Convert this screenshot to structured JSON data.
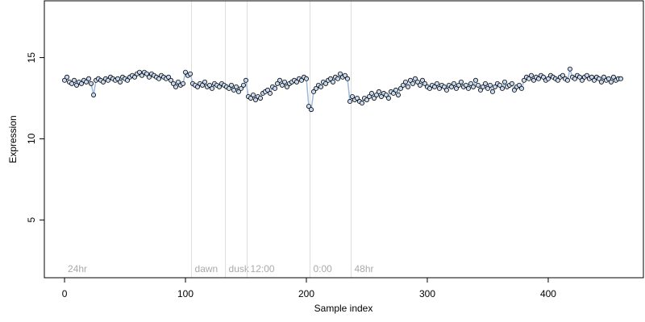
{
  "chart_data": {
    "type": "scatter",
    "xlabel": "Sample index",
    "ylabel": "Expression",
    "xlim": [
      -16.7,
      478.7
    ],
    "xticks": [
      0,
      100,
      200,
      300,
      400
    ],
    "ylim": [
      1.44,
      18.5
    ],
    "yticks": [
      5,
      10,
      15
    ],
    "color": "#c6d9f0",
    "line_color": "#9ab8e0",
    "annotations": [
      {
        "x": 0,
        "label": "24hr"
      },
      {
        "x": 105,
        "label": "dawn"
      },
      {
        "x": 133,
        "label": "dusk"
      },
      {
        "x": 151,
        "label": "12:00"
      },
      {
        "x": 203,
        "label": "0:00"
      },
      {
        "x": 237,
        "label": "48hr"
      }
    ],
    "x": [
      0,
      2,
      4,
      6,
      8,
      10,
      12,
      14,
      16,
      18,
      20,
      22,
      24,
      26,
      28,
      30,
      32,
      34,
      36,
      38,
      40,
      42,
      44,
      46,
      48,
      50,
      52,
      54,
      56,
      58,
      60,
      62,
      64,
      66,
      68,
      70,
      72,
      74,
      76,
      78,
      80,
      82,
      84,
      86,
      88,
      90,
      92,
      94,
      96,
      98,
      100,
      102,
      104,
      106,
      108,
      110,
      112,
      114,
      116,
      118,
      120,
      122,
      124,
      126,
      128,
      130,
      132,
      134,
      136,
      138,
      140,
      142,
      144,
      146,
      148,
      150,
      152,
      154,
      156,
      158,
      160,
      162,
      164,
      166,
      168,
      170,
      172,
      174,
      176,
      178,
      180,
      182,
      184,
      186,
      188,
      190,
      192,
      194,
      196,
      198,
      200,
      202,
      204,
      206,
      208,
      210,
      212,
      214,
      216,
      218,
      220,
      222,
      224,
      226,
      228,
      230,
      232,
      234,
      236,
      238,
      240,
      242,
      244,
      246,
      248,
      250,
      252,
      254,
      256,
      258,
      260,
      262,
      264,
      266,
      268,
      270,
      272,
      274,
      276,
      278,
      280,
      282,
      284,
      286,
      288,
      290,
      292,
      294,
      296,
      298,
      300,
      302,
      304,
      306,
      308,
      310,
      312,
      314,
      316,
      318,
      320,
      322,
      324,
      326,
      328,
      330,
      332,
      334,
      336,
      338,
      340,
      342,
      344,
      346,
      348,
      350,
      352,
      354,
      356,
      358,
      360,
      362,
      364,
      366,
      368,
      370,
      372,
      374,
      376,
      378,
      380,
      382,
      384,
      386,
      388,
      390,
      392,
      394,
      396,
      398,
      400,
      402,
      404,
      406,
      408,
      410,
      412,
      414,
      416,
      418,
      420,
      422,
      424,
      426,
      428,
      430,
      432,
      434,
      436,
      438,
      440,
      442,
      444,
      446,
      448,
      450,
      452,
      454,
      456,
      458,
      460
    ],
    "values": [
      13.6,
      13.8,
      13.5,
      13.4,
      13.6,
      13.3,
      13.5,
      13.4,
      13.6,
      13.5,
      13.7,
      13.4,
      12.7,
      13.6,
      13.7,
      13.6,
      13.5,
      13.7,
      13.6,
      13.8,
      13.7,
      13.6,
      13.7,
      13.5,
      13.8,
      13.7,
      13.6,
      13.8,
      13.9,
      13.8,
      14.0,
      14.1,
      13.9,
      14.1,
      14.0,
      13.8,
      14.0,
      13.9,
      13.8,
      13.7,
      13.9,
      13.8,
      13.7,
      13.8,
      13.6,
      13.4,
      13.2,
      13.5,
      13.3,
      13.4,
      14.1,
      13.9,
      14.0,
      13.4,
      13.3,
      13.2,
      13.4,
      13.3,
      13.5,
      13.2,
      13.3,
      13.1,
      13.4,
      13.3,
      13.2,
      13.4,
      13.3,
      13.2,
      13.1,
      13.3,
      13.0,
      13.2,
      12.9,
      13.1,
      13.3,
      13.6,
      12.6,
      12.5,
      12.7,
      12.4,
      12.6,
      12.5,
      12.8,
      12.9,
      13.0,
      12.8,
      13.2,
      13.1,
      13.4,
      13.6,
      13.3,
      13.5,
      13.2,
      13.4,
      13.5,
      13.6,
      13.5,
      13.7,
      13.6,
      13.8,
      13.7,
      12.0,
      11.8,
      12.9,
      13.1,
      13.3,
      13.2,
      13.5,
      13.4,
      13.6,
      13.7,
      13.5,
      13.8,
      13.7,
      14.0,
      13.8,
      13.9,
      13.7,
      12.3,
      12.6,
      12.4,
      12.5,
      12.3,
      12.2,
      12.5,
      12.4,
      12.6,
      12.8,
      12.5,
      12.7,
      12.9,
      12.6,
      12.8,
      12.7,
      12.5,
      12.9,
      12.8,
      13.0,
      12.7,
      13.1,
      13.3,
      13.5,
      13.2,
      13.6,
      13.4,
      13.7,
      13.5,
      13.3,
      13.6,
      13.4,
      13.2,
      13.1,
      13.3,
      13.2,
      13.4,
      13.1,
      13.3,
      13.2,
      13.0,
      13.3,
      13.2,
      13.4,
      13.1,
      13.3,
      13.5,
      13.2,
      13.3,
      13.1,
      13.4,
      13.2,
      13.6,
      13.3,
      13.0,
      13.2,
      13.4,
      13.1,
      13.3,
      12.9,
      13.2,
      13.4,
      13.3,
      13.1,
      13.5,
      13.2,
      13.3,
      13.4,
      13.0,
      13.2,
      13.3,
      13.1,
      13.6,
      13.8,
      13.7,
      13.9,
      13.6,
      13.8,
      13.7,
      13.9,
      13.8,
      13.6,
      13.7,
      13.9,
      13.8,
      13.7,
      13.6,
      13.8,
      13.9,
      13.7,
      13.6,
      14.3,
      13.8,
      13.7,
      13.9,
      13.8,
      13.6,
      13.8,
      13.9,
      13.7,
      13.8,
      13.6,
      13.8,
      13.7,
      13.5,
      13.8,
      13.6,
      13.7,
      13.5,
      13.8,
      13.6,
      13.7,
      13.7
    ]
  }
}
